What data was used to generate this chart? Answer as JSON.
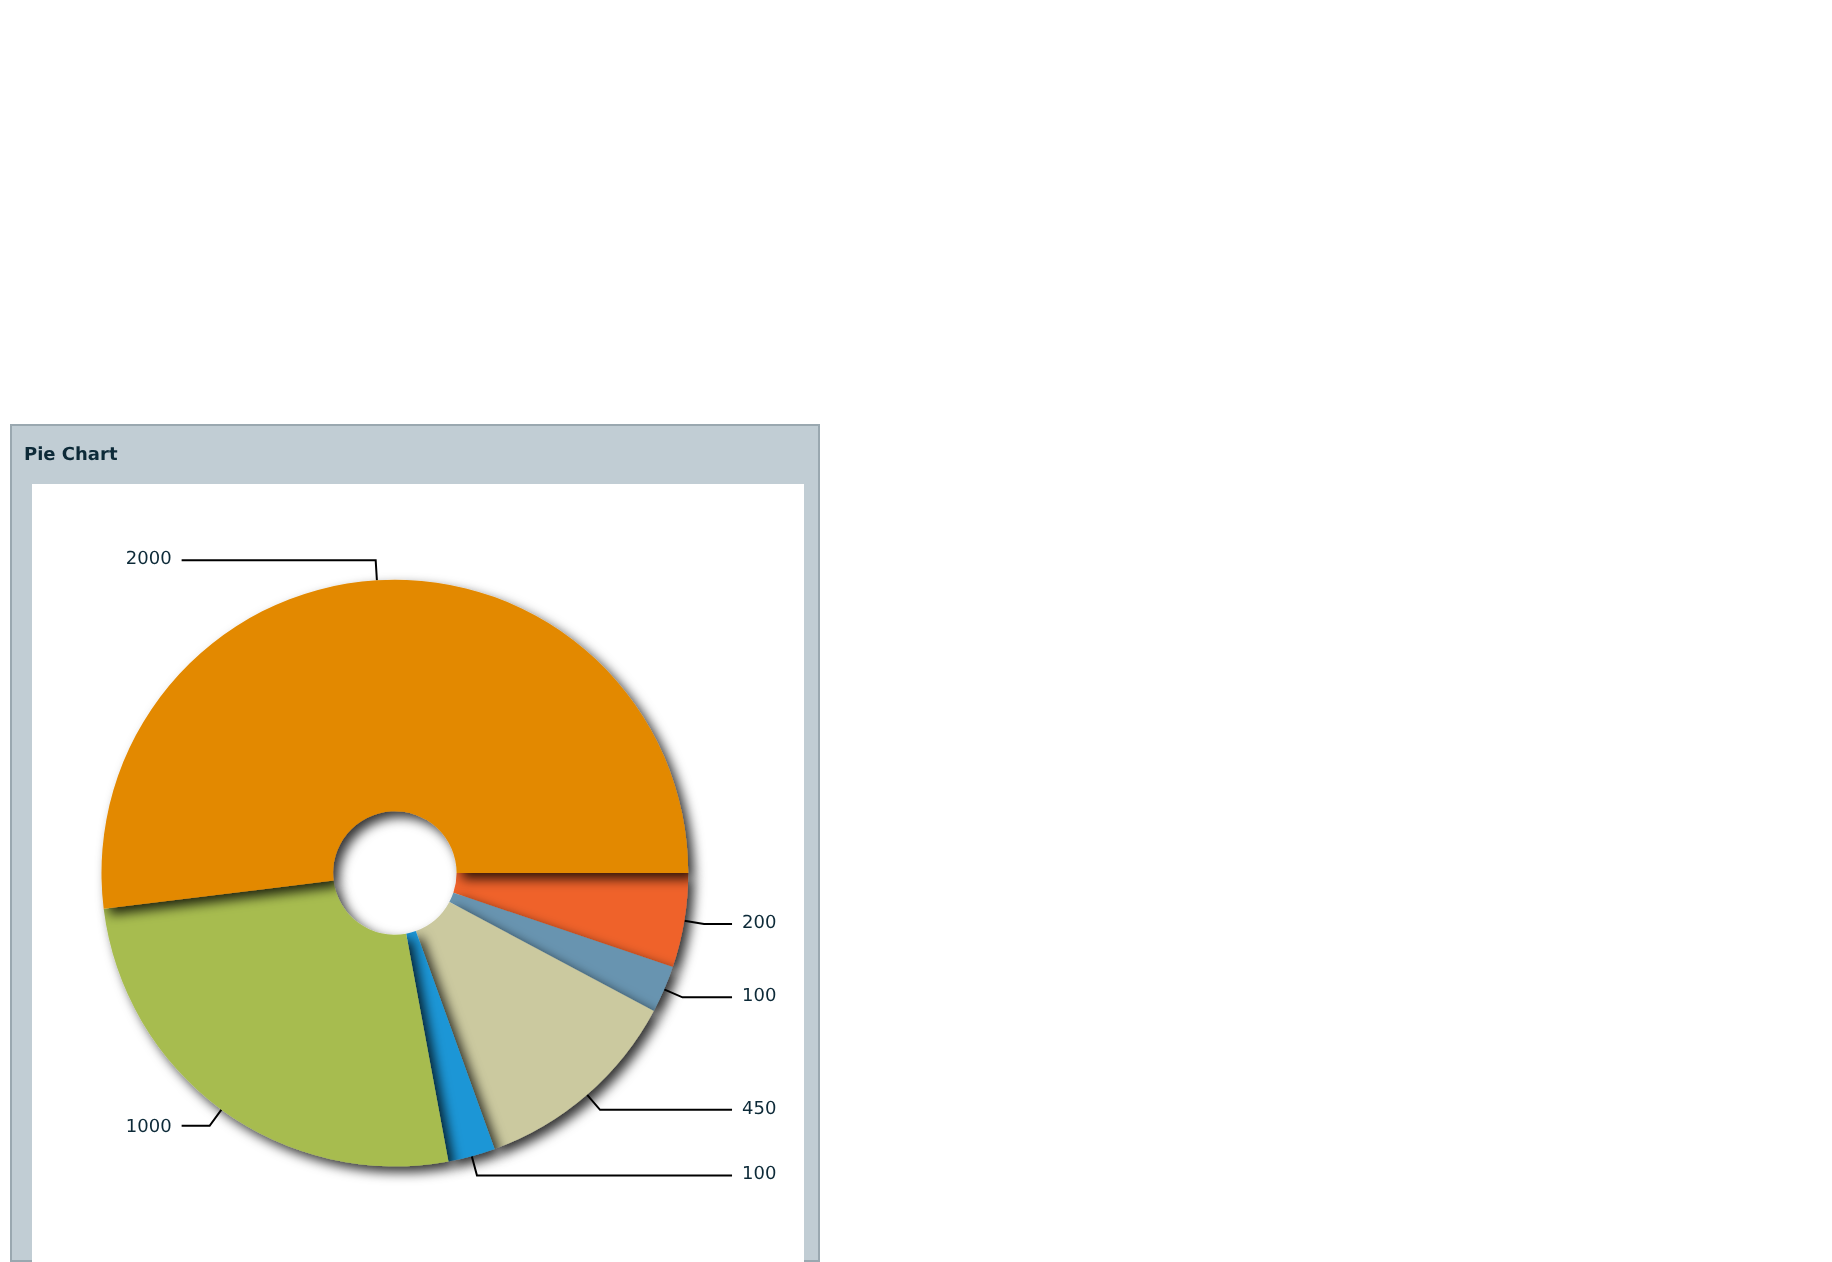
{
  "chart_data": {
    "type": "donut",
    "title": "Pie Chart",
    "categories": [
      null,
      null,
      null,
      null,
      null,
      null
    ],
    "values": [
      200,
      100,
      450,
      100,
      1000,
      2000
    ],
    "colors": [
      "#ef622a",
      "#6794b0",
      "#cbc99f",
      "#1e96d6",
      "#a7bc50",
      "#e38900"
    ],
    "data_labels": true
  }
}
